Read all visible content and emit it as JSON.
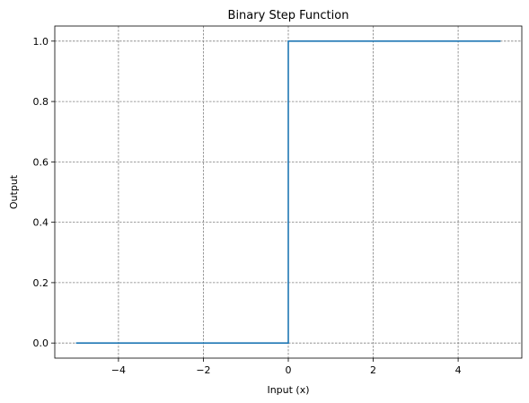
{
  "chart_data": {
    "type": "line",
    "title": "Binary Step Function",
    "xlabel": "Input (x)",
    "ylabel": "Output",
    "xlim": [
      -5.5,
      5.5
    ],
    "ylim": [
      -0.05,
      1.05
    ],
    "xticks": [
      -4,
      -2,
      0,
      2,
      4
    ],
    "xtick_labels": [
      "−4",
      "−2",
      "0",
      "2",
      "4"
    ],
    "yticks": [
      0.0,
      0.2,
      0.4,
      0.6,
      0.8,
      1.0
    ],
    "ytick_labels": [
      "0.0",
      "0.2",
      "0.4",
      "0.6",
      "0.8",
      "1.0"
    ],
    "grid": true,
    "series": [
      {
        "color": "#1f77b4",
        "x": [
          -5,
          0,
          0,
          5
        ],
        "y": [
          0,
          0,
          1,
          1
        ]
      }
    ]
  }
}
